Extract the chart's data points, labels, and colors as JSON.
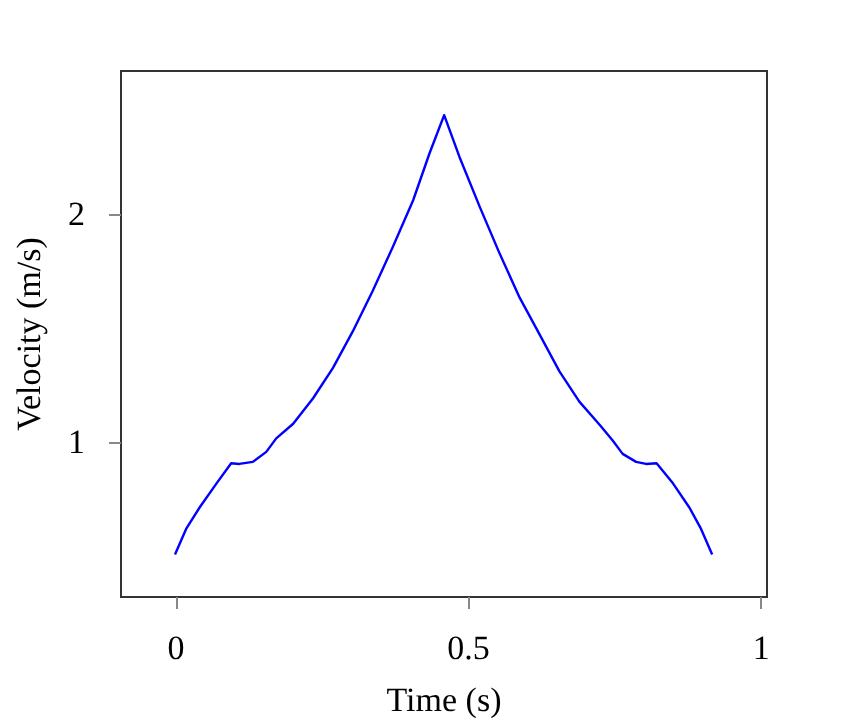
{
  "chart_data": {
    "type": "line",
    "xlabel": "Time (s)",
    "ylabel": "Velocity (m/s)",
    "x": [
      0,
      0.019,
      0.042,
      0.071,
      0.096,
      0.11,
      0.133,
      0.156,
      0.173,
      0.202,
      0.236,
      0.27,
      0.304,
      0.338,
      0.372,
      0.407,
      0.435,
      0.46,
      0.486,
      0.521,
      0.555,
      0.589,
      0.623,
      0.657,
      0.691,
      0.726,
      0.748,
      0.765,
      0.788,
      0.805,
      0.823,
      0.851,
      0.879,
      0.899,
      0.918
    ],
    "series": [
      {
        "color": "#0000ff",
        "values": [
          0.506,
          0.618,
          0.712,
          0.818,
          0.906,
          0.903,
          0.912,
          0.956,
          1.015,
          1.079,
          1.191,
          1.324,
          1.485,
          1.662,
          1.853,
          2.059,
          2.265,
          2.432,
          2.25,
          2.029,
          1.824,
          1.632,
          1.471,
          1.309,
          1.176,
          1.074,
          1.006,
          0.947,
          0.912,
          0.903,
          0.906,
          0.818,
          0.712,
          0.618,
          0.506
        ]
      }
    ],
    "xlim": [
      -0.094,
      1.01
    ],
    "ylim": [
      0.324,
      2.63
    ],
    "xticks": [
      0,
      0.5,
      1
    ],
    "yticks": [
      1,
      2
    ],
    "grid": false,
    "legend": false,
    "marker": "none",
    "line_style": "solid"
  }
}
